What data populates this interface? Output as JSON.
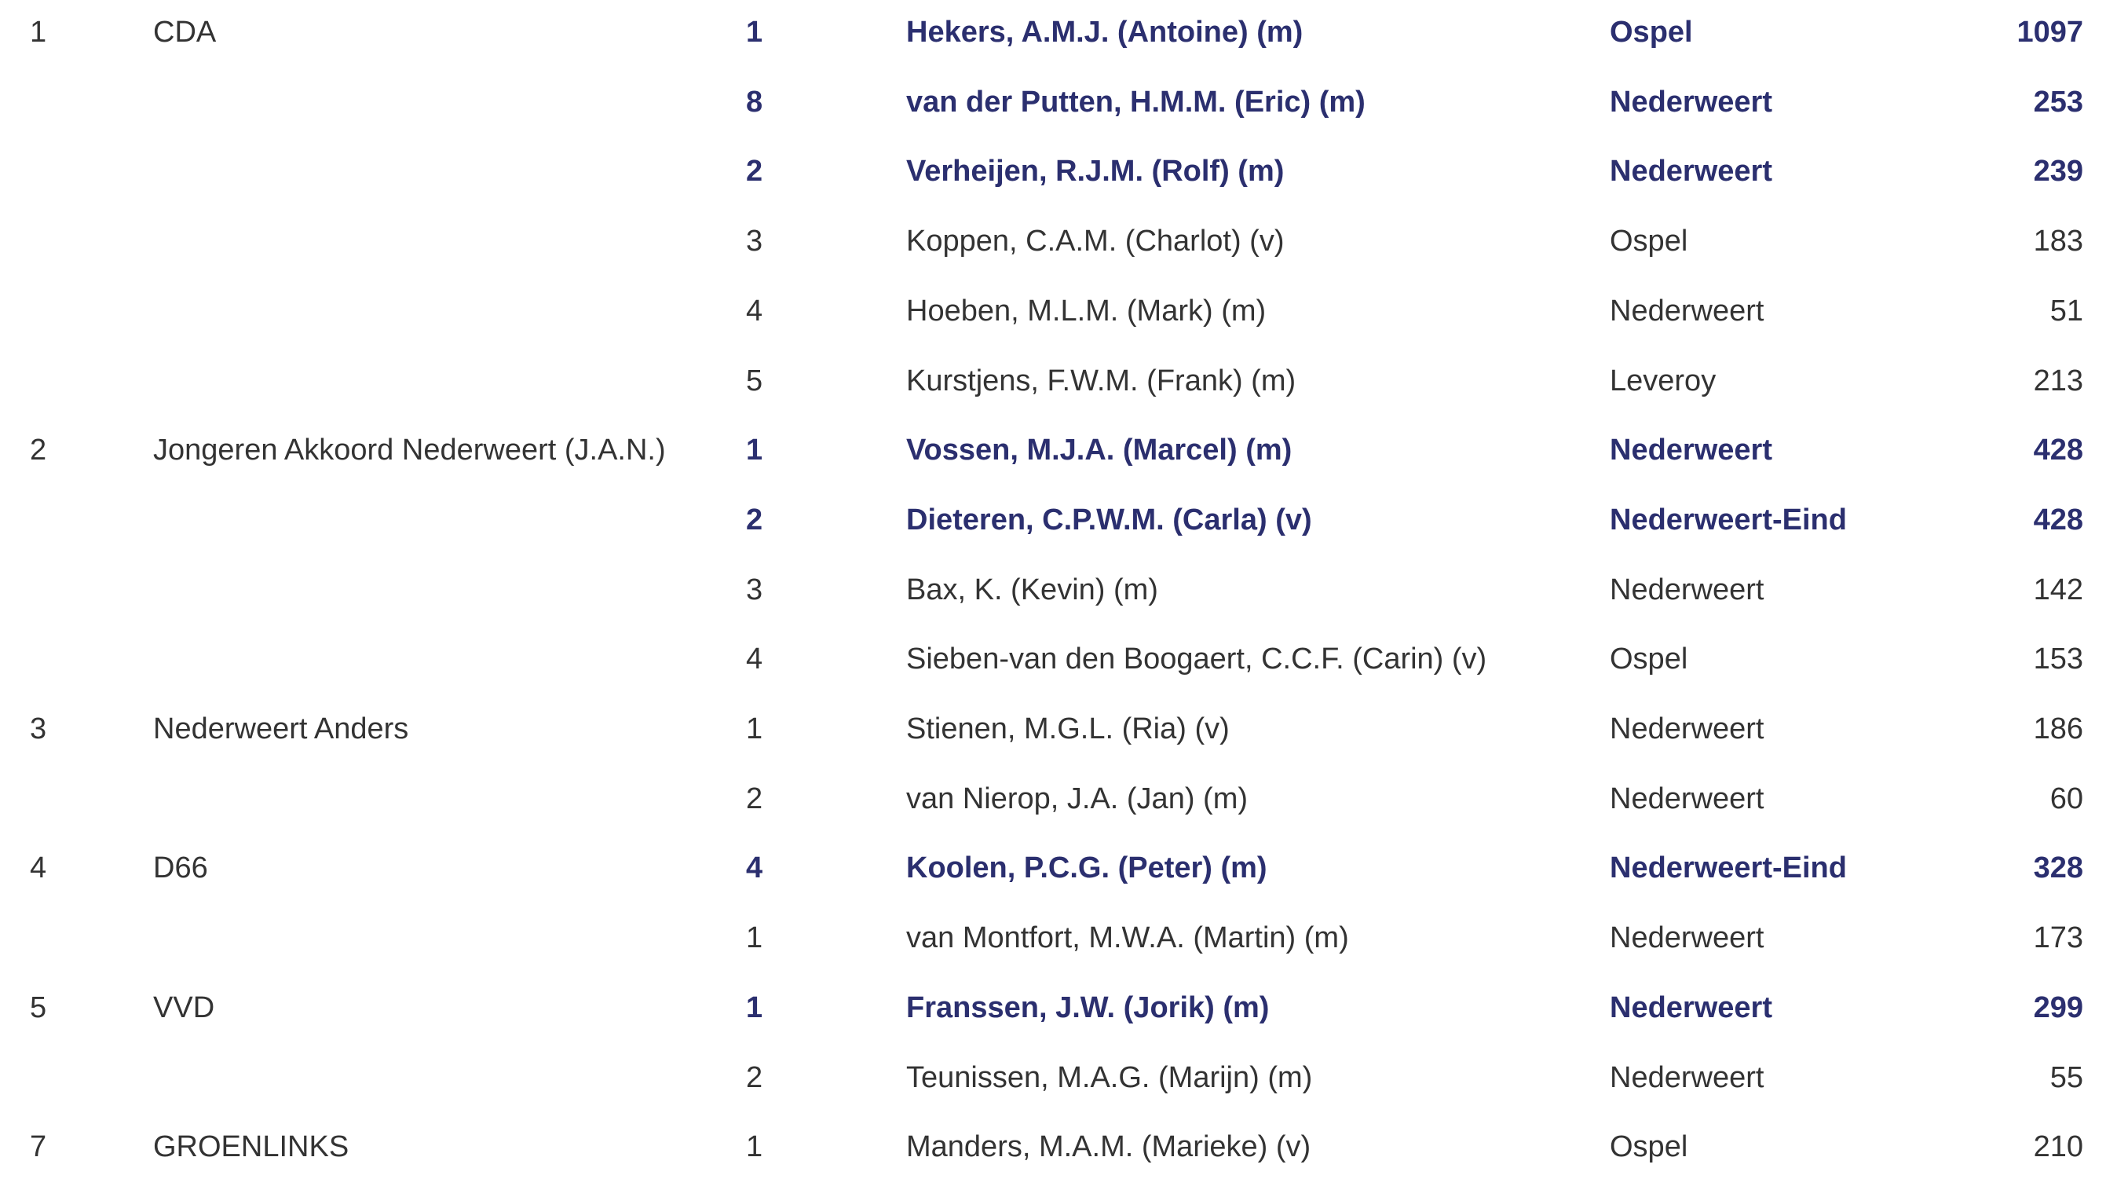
{
  "colors": {
    "elected": "#2b2f6f",
    "text": "#333333"
  },
  "rows": [
    {
      "list_no": "1",
      "party": "CDA",
      "position": "1",
      "name": "Hekers, A.M.J. (Antoine) (m)",
      "place": "Ospel",
      "votes": "1097",
      "elected": true
    },
    {
      "list_no": "",
      "party": "",
      "position": "8",
      "name": "van der Putten, H.M.M. (Eric) (m)",
      "place": "Nederweert",
      "votes": "253",
      "elected": true
    },
    {
      "list_no": "",
      "party": "",
      "position": "2",
      "name": "Verheijen, R.J.M. (Rolf) (m)",
      "place": "Nederweert",
      "votes": "239",
      "elected": true
    },
    {
      "list_no": "",
      "party": "",
      "position": "3",
      "name": "Koppen, C.A.M. (Charlot) (v)",
      "place": "Ospel",
      "votes": "183",
      "elected": false
    },
    {
      "list_no": "",
      "party": "",
      "position": "4",
      "name": "Hoeben, M.L.M. (Mark) (m)",
      "place": "Nederweert",
      "votes": "51",
      "elected": false
    },
    {
      "list_no": "",
      "party": "",
      "position": "5",
      "name": "Kurstjens, F.W.M. (Frank) (m)",
      "place": "Leveroy",
      "votes": "213",
      "elected": false
    },
    {
      "list_no": "2",
      "party": "Jongeren Akkoord Nederweert (J.A.N.)",
      "position": "1",
      "name": "Vossen, M.J.A. (Marcel) (m)",
      "place": "Nederweert",
      "votes": "428",
      "elected": true
    },
    {
      "list_no": "",
      "party": "",
      "position": "2",
      "name": "Dieteren, C.P.W.M. (Carla) (v)",
      "place": "Nederweert-Eind",
      "votes": "428",
      "elected": true
    },
    {
      "list_no": "",
      "party": "",
      "position": "3",
      "name": "Bax, K. (Kevin) (m)",
      "place": "Nederweert",
      "votes": "142",
      "elected": false
    },
    {
      "list_no": "",
      "party": "",
      "position": "4",
      "name": "Sieben-van den Boogaert, C.C.F. (Carin) (v)",
      "place": "Ospel",
      "votes": "153",
      "elected": false
    },
    {
      "list_no": "3",
      "party": "Nederweert Anders",
      "position": "1",
      "name": "Stienen, M.G.L. (Ria) (v)",
      "place": "Nederweert",
      "votes": "186",
      "elected": false
    },
    {
      "list_no": "",
      "party": "",
      "position": "2",
      "name": "van Nierop, J.A. (Jan) (m)",
      "place": "Nederweert",
      "votes": "60",
      "elected": false
    },
    {
      "list_no": "4",
      "party": "D66",
      "position": "4",
      "name": "Koolen, P.C.G. (Peter) (m)",
      "place": "Nederweert-Eind",
      "votes": "328",
      "elected": true
    },
    {
      "list_no": "",
      "party": "",
      "position": "1",
      "name": "van Montfort, M.W.A. (Martin) (m)",
      "place": "Nederweert",
      "votes": "173",
      "elected": false
    },
    {
      "list_no": "5",
      "party": "VVD",
      "position": "1",
      "name": "Franssen, J.W. (Jorik) (m)",
      "place": "Nederweert",
      "votes": "299",
      "elected": true
    },
    {
      "list_no": "",
      "party": "",
      "position": "2",
      "name": "Teunissen, M.A.G. (Marijn) (m)",
      "place": "Nederweert",
      "votes": "55",
      "elected": false
    },
    {
      "list_no": "7",
      "party": "GROENLINKS",
      "position": "1",
      "name": "Manders, M.A.M. (Marieke) (v)",
      "place": "Ospel",
      "votes": "210",
      "elected": false
    }
  ]
}
